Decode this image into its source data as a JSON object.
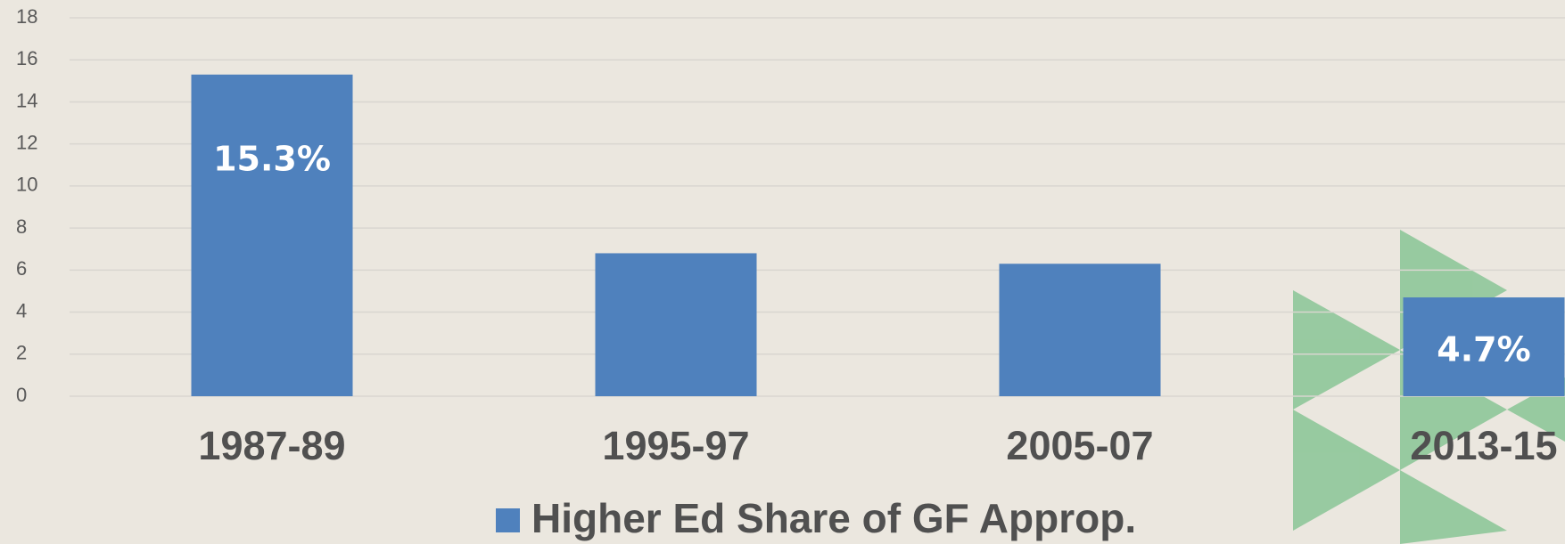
{
  "chart_data": {
    "type": "bar",
    "categories": [
      "1987-89",
      "1995-97",
      "2005-07",
      "2013-15"
    ],
    "series": [
      {
        "name": "Higher Ed Share of GF Approp.",
        "color": "#4f81bd",
        "values": [
          15.3,
          6.8,
          6.3,
          4.7
        ],
        "value_labels": [
          "15.3%",
          null,
          null,
          "4.7%"
        ]
      }
    ],
    "ylim": [
      0,
      18
    ],
    "yticks": [
      0,
      2,
      4,
      6,
      8,
      10,
      12,
      14,
      16,
      18
    ],
    "grid": true,
    "legend": "bottom"
  }
}
